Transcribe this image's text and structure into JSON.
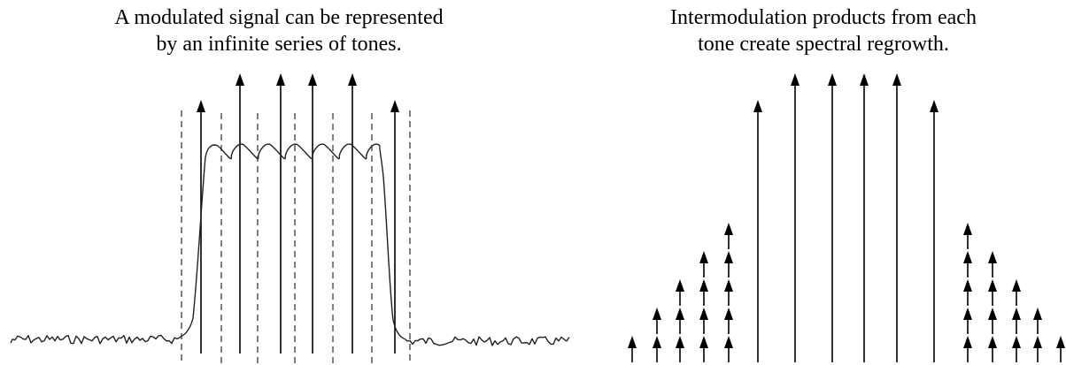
{
  "left_panel": {
    "caption_lines": [
      "A modulated signal can be represented",
      "by an infinite series of tones."
    ]
  },
  "right_panel": {
    "caption_lines": [
      "Intermodulation products from each",
      "tone create spectral regrowth."
    ]
  },
  "colors": {
    "ink": "#000000",
    "dashed": "#555555"
  }
}
